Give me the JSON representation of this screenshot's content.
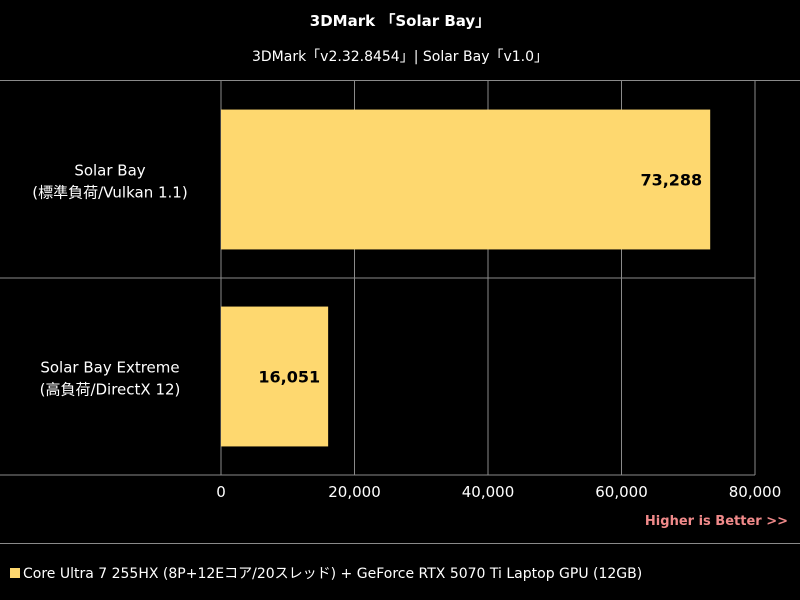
{
  "chart_data": {
    "type": "bar",
    "orientation": "horizontal",
    "title": "3DMark 「Solar Bay」",
    "subtitle": "3DMark「v2.32.8454」| Solar Bay「v1.0」",
    "categories": [
      [
        "Solar Bay",
        "(標準負荷/Vulkan 1.1)"
      ],
      [
        "Solar Bay Extreme",
        "(高負荷/DirectX 12)"
      ]
    ],
    "series": [
      {
        "name": "Core Ultra 7 255HX (8P+12Eコア/20スレッド) + GeForce RTX 5070 Ti Laptop GPU (12GB)",
        "values": [
          73288,
          16051
        ],
        "labels": [
          "73,288",
          "16,051"
        ]
      }
    ],
    "xlim": [
      0,
      80000
    ],
    "xticks": [
      0,
      20000,
      40000,
      60000,
      80000
    ],
    "xtick_labels": [
      "0",
      "20,000",
      "40,000",
      "60,000",
      "80,000"
    ],
    "grid": true,
    "legend_position": "bottom-left",
    "note": "Higher is Better >>",
    "colors": {
      "bar": "#fed86f",
      "background": "#000000",
      "text": "#ffffff",
      "note": "#f08a8a",
      "grid": "#8a8a8a"
    }
  }
}
